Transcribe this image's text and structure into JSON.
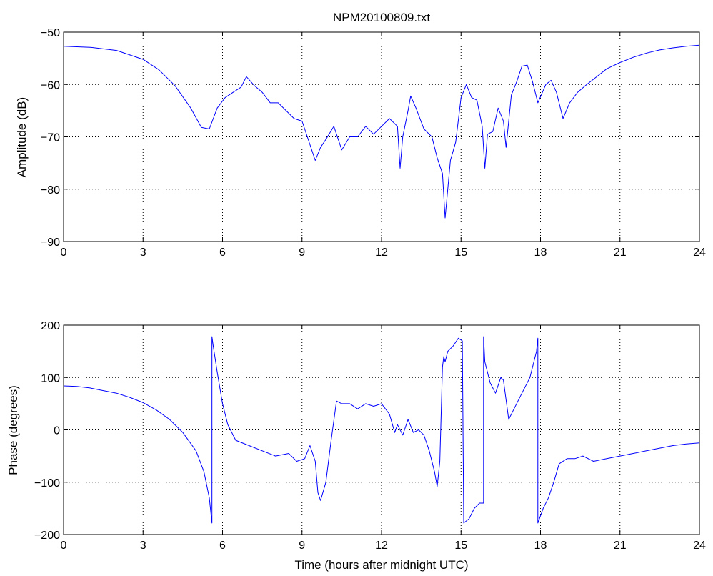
{
  "chart_data": [
    {
      "type": "line",
      "title": "NPM20100809.txt",
      "xlabel": "",
      "ylabel": "Amplitude (dB)",
      "xlim": [
        0,
        24
      ],
      "ylim": [
        -90,
        -50
      ],
      "xticks": [
        "0",
        "3",
        "6",
        "9",
        "12",
        "15",
        "18",
        "21",
        "24"
      ],
      "yticks": [
        "-90",
        "-80",
        "-70",
        "-60",
        "-50"
      ],
      "grid": true,
      "color": "#0000ff",
      "series": [
        {
          "x": [
            0,
            1,
            2,
            3,
            3.6,
            4.2,
            4.8,
            5.2,
            5.5,
            5.8,
            6.1,
            6.4,
            6.7,
            6.9,
            7.2,
            7.5,
            7.8,
            8.1,
            8.4,
            8.7,
            9.0,
            9.3,
            9.5,
            9.7,
            9.9,
            10.2,
            10.5,
            10.8,
            11.1,
            11.4,
            11.7,
            12.0,
            12.3,
            12.6,
            12.7,
            12.8,
            13.0,
            13.1,
            13.3,
            13.6,
            13.9,
            14.1,
            14.3,
            14.4,
            14.6,
            14.8,
            15.0,
            15.2,
            15.4,
            15.6,
            15.8,
            15.9,
            16.0,
            16.2,
            16.4,
            16.6,
            16.7,
            16.9,
            17.1,
            17.3,
            17.5,
            17.7,
            17.9,
            18.2,
            18.4,
            18.6,
            18.85,
            19.1,
            19.4,
            19.7,
            20.0,
            20.5,
            21.0,
            21.5,
            22.0,
            22.5,
            23.0,
            23.5,
            24.0
          ],
          "y": [
            -52.7,
            -52.9,
            -53.5,
            -55.2,
            -57.2,
            -60.2,
            -64.5,
            -68.2,
            -68.5,
            -64.5,
            -62.5,
            -61.5,
            -60.5,
            -58.5,
            -60.2,
            -61.5,
            -63.5,
            -63.5,
            -65.0,
            -66.5,
            -67.0,
            -71.5,
            -74.5,
            -72.0,
            -70.5,
            -68.0,
            -72.5,
            -70.0,
            -70.0,
            -68.0,
            -69.5,
            -68.0,
            -66.5,
            -68.0,
            -76.0,
            -70.0,
            -65.0,
            -62.2,
            -64.5,
            -68.5,
            -70.0,
            -74.0,
            -77.0,
            -85.5,
            -74.5,
            -71.0,
            -62.5,
            -60.0,
            -62.5,
            -63.0,
            -68.0,
            -76.0,
            -69.5,
            -69.0,
            -64.5,
            -67.0,
            -72.0,
            -62.0,
            -59.5,
            -56.5,
            -56.3,
            -59.5,
            -63.5,
            -60.0,
            -59.2,
            -61.5,
            -66.5,
            -63.5,
            -61.5,
            -60.2,
            -59.0,
            -57.0,
            -55.8,
            -54.8,
            -54.0,
            -53.4,
            -53.0,
            -52.7,
            -52.5
          ]
        }
      ]
    },
    {
      "type": "line",
      "title": "",
      "xlabel": "Time (hours after midnight UTC)",
      "ylabel": "Phase (degrees)",
      "xlim": [
        0,
        24
      ],
      "ylim": [
        -200,
        200
      ],
      "xticks": [
        "0",
        "3",
        "6",
        "9",
        "12",
        "15",
        "18",
        "21",
        "24"
      ],
      "yticks": [
        "-200",
        "-100",
        "0",
        "100",
        "200"
      ],
      "grid": true,
      "color": "#0000ff",
      "series": [
        {
          "x": [
            0,
            0.5,
            1,
            1.5,
            2,
            2.5,
            3,
            3.5,
            4,
            4.5,
            5,
            5.3,
            5.5,
            5.6,
            5.6,
            5.65,
            5.8,
            6.0,
            6.2,
            6.5,
            7.0,
            7.5,
            8.0,
            8.5,
            8.8,
            9.1,
            9.3,
            9.5,
            9.6,
            9.7,
            9.9,
            10.1,
            10.3,
            10.5,
            10.8,
            11.1,
            11.4,
            11.7,
            12.0,
            12.3,
            12.5,
            12.6,
            12.8,
            13.0,
            13.2,
            13.4,
            13.6,
            13.8,
            14.0,
            14.1,
            14.2,
            14.3,
            14.35,
            14.4,
            14.5,
            14.7,
            14.9,
            15.05,
            15.1,
            15.1,
            15.3,
            15.5,
            15.7,
            15.85,
            15.85,
            15.9,
            16.1,
            16.3,
            16.5,
            16.6,
            16.8,
            17.0,
            17.3,
            17.6,
            17.85,
            17.9,
            17.9,
            18.1,
            18.3,
            18.5,
            18.7,
            19.0,
            19.3,
            19.6,
            20.0,
            20.5,
            21.0,
            21.5,
            22.0,
            22.5,
            23.0,
            23.5,
            24.0
          ],
          "y": [
            84,
            83,
            80,
            75,
            70,
            62,
            52,
            38,
            20,
            -5,
            -40,
            -80,
            -130,
            -178,
            178,
            160,
            110,
            50,
            10,
            -20,
            -30,
            -40,
            -50,
            -45,
            -60,
            -55,
            -30,
            -60,
            -120,
            -135,
            -100,
            -20,
            55,
            50,
            50,
            40,
            50,
            45,
            50,
            30,
            -5,
            10,
            -10,
            20,
            -5,
            0,
            -10,
            -40,
            -80,
            -108,
            -60,
            120,
            140,
            130,
            150,
            160,
            175,
            170,
            -170,
            -178,
            -170,
            -150,
            -140,
            -140,
            178,
            130,
            90,
            70,
            100,
            95,
            20,
            40,
            70,
            100,
            150,
            175,
            -178,
            -150,
            -130,
            -100,
            -65,
            -55,
            -55,
            -50,
            -60,
            -55,
            -50,
            -45,
            -40,
            -35,
            -30,
            -27,
            -25
          ]
        }
      ]
    }
  ]
}
